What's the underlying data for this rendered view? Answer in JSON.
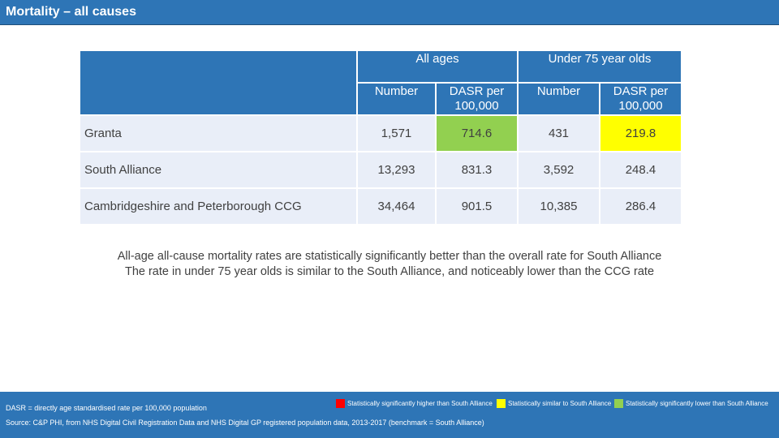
{
  "title": "Mortality – all causes",
  "table": {
    "group_headers": [
      "All ages",
      "Under 75 year olds"
    ],
    "sub_headers": [
      "Number",
      "DASR per 100,000",
      "Number",
      "DASR per 100,000"
    ],
    "rows": [
      {
        "label": "Granta",
        "values": [
          "1,571",
          "714.6",
          "431",
          "219.8"
        ],
        "highlight": [
          null,
          "#92d050",
          null,
          "#ffff00"
        ]
      },
      {
        "label": "South Alliance",
        "values": [
          "13,293",
          "831.3",
          "3,592",
          "248.4"
        ],
        "highlight": [
          null,
          null,
          null,
          null
        ]
      },
      {
        "label": "Cambridgeshire and Peterborough CCG",
        "values": [
          "34,464",
          "901.5",
          "10,385",
          "286.4"
        ],
        "highlight": [
          null,
          null,
          null,
          null
        ]
      }
    ]
  },
  "summary": [
    "All-age all-cause mortality rates are statistically significantly better than the overall rate for South Alliance",
    "The rate in under 75 year olds is similar to the South Alliance, and noticeably lower than the CCG rate"
  ],
  "footer": {
    "note": "DASR = directly age standardised rate per 100,000 population",
    "source": "Source: C&P PHI, from NHS Digital Civil Registration Data and NHS Digital GP registered population data, 2013-2017 (benchmark = South Alliance)"
  },
  "legend": [
    {
      "label": "Statistically significantly higher than South Alliance",
      "color": "#ff0000"
    },
    {
      "label": "Statistically similar to South Alliance",
      "color": "#ffff00"
    },
    {
      "label": "Statistically significantly lower than South Alliance",
      "color": "#92d050"
    }
  ],
  "colors": {
    "header": "#2e75b6",
    "row": "#e9eef8"
  }
}
